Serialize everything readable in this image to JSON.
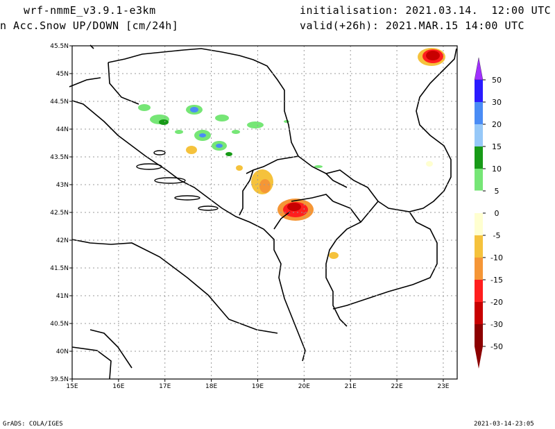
{
  "header": {
    "model": "wrf-nmmE_v3.9.1-e3km",
    "field": "n Acc.Snow UP/DOWN [cm/24h]",
    "init": "initialisation: 2021.03.14.  12:00 UTC",
    "valid": "valid(+26h): 2021.MAR.15 14:00 UTC"
  },
  "axes": {
    "lat_labels": [
      "45.5N",
      "45N",
      "44.5N",
      "44N",
      "43.5N",
      "43N",
      "42.5N",
      "42N",
      "41.5N",
      "41N",
      "40.5N",
      "40N",
      "39.5N"
    ],
    "lon_labels": [
      "15E",
      "16E",
      "17E",
      "18E",
      "19E",
      "20E",
      "21E",
      "22E",
      "23E"
    ]
  },
  "legend": {
    "labels": [
      "50",
      "30",
      "20",
      "15",
      "10",
      "5",
      "0",
      "-5",
      "-10",
      "-15",
      "-20",
      "-30",
      "-50"
    ],
    "colors": [
      "#2a1bff",
      "#4a8cf5",
      "#96c8f8",
      "#179a17",
      "#76e676",
      "#ffffff",
      "#ffffd0",
      "#f5c23c",
      "#f59636",
      "#ff1e1e",
      "#c80000",
      "#8c0000"
    ],
    "top_color": "#a030ff",
    "bottom_color": "#8c0000"
  },
  "footer": {
    "left": "GrADS: COLA/IGES",
    "right": "2021-03-14-23:05"
  }
}
